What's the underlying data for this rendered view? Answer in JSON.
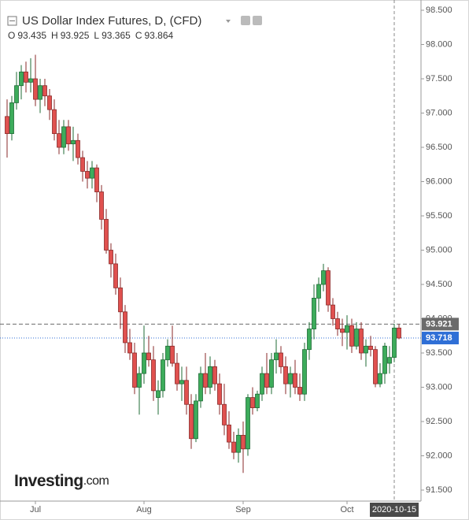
{
  "chart_data": {
    "type": "candlestick",
    "title": "US Dollar Index Futures, D, (CFD)",
    "ohlc_labels": [
      "O",
      "H",
      "L",
      "C"
    ],
    "up_color": "#3dac5b",
    "down_color": "#e0514f",
    "open": [
      96.95,
      96.7,
      97.15,
      97.4,
      97.6,
      97.45,
      97.5,
      97.2,
      97.4,
      97.25,
      97.05,
      96.7,
      96.5,
      96.8,
      96.55,
      96.6,
      96.35,
      96.15,
      96.05,
      96.2,
      95.85,
      95.45,
      95.0,
      94.8,
      94.45,
      94.1,
      93.65,
      93.5,
      93.0,
      93.2,
      93.5,
      93.4,
      92.85,
      92.95,
      93.4,
      93.6,
      93.35,
      93.05,
      93.1,
      92.75,
      92.25,
      92.8,
      93.2,
      93.0,
      93.3,
      93.05,
      92.75,
      92.45,
      92.2,
      92.05,
      92.3,
      92.1,
      92.85,
      92.7,
      92.9,
      93.2,
      93.0,
      93.4,
      93.5,
      93.3,
      93.05,
      93.2,
      93.0,
      92.9,
      93.55,
      93.85,
      94.3,
      94.5,
      94.7,
      94.2,
      94.0,
      93.85,
      93.8,
      93.9,
      93.6,
      93.85,
      93.5,
      93.6,
      93.55,
      93.05,
      93.2,
      93.35,
      93.435,
      93.864
    ],
    "high": [
      97.2,
      97.25,
      97.6,
      97.7,
      97.75,
      97.8,
      97.85,
      97.5,
      97.5,
      97.35,
      97.2,
      96.9,
      96.9,
      96.9,
      96.8,
      96.7,
      96.45,
      96.3,
      96.3,
      96.25,
      95.95,
      95.6,
      95.1,
      94.95,
      94.6,
      94.2,
      93.85,
      93.65,
      93.3,
      93.9,
      93.75,
      93.6,
      93.1,
      93.5,
      93.7,
      93.9,
      93.5,
      93.3,
      93.3,
      92.9,
      92.9,
      93.3,
      93.5,
      93.45,
      93.4,
      93.2,
      93.05,
      92.65,
      92.35,
      92.4,
      92.5,
      92.9,
      93.0,
      92.95,
      93.3,
      93.5,
      93.5,
      93.7,
      93.6,
      93.45,
      93.3,
      93.4,
      93.2,
      93.65,
      93.95,
      94.5,
      94.6,
      94.8,
      94.75,
      94.3,
      94.1,
      94.0,
      94.05,
      94.0,
      93.95,
      93.95,
      93.7,
      93.75,
      93.6,
      93.35,
      93.65,
      93.6,
      93.925,
      93.921
    ],
    "low": [
      96.35,
      96.6,
      97.05,
      97.2,
      97.3,
      97.3,
      97.1,
      97.0,
      97.1,
      96.9,
      96.6,
      96.4,
      96.4,
      96.45,
      96.3,
      96.25,
      96.0,
      95.9,
      95.9,
      95.7,
      95.3,
      94.95,
      94.6,
      94.35,
      93.85,
      93.5,
      93.4,
      92.9,
      92.6,
      93.05,
      93.3,
      92.8,
      92.6,
      92.85,
      93.3,
      93.3,
      92.95,
      92.8,
      92.6,
      92.1,
      92.2,
      92.7,
      92.9,
      92.9,
      92.95,
      92.6,
      92.3,
      92.1,
      91.95,
      91.9,
      91.75,
      92.0,
      92.6,
      92.65,
      92.8,
      92.9,
      92.9,
      93.2,
      93.2,
      92.9,
      92.85,
      92.9,
      92.8,
      92.8,
      93.4,
      93.7,
      94.1,
      94.4,
      94.1,
      93.9,
      93.75,
      93.6,
      93.55,
      93.5,
      93.55,
      93.4,
      93.3,
      93.45,
      93.0,
      93.0,
      93.05,
      93.2,
      93.365,
      93.7
    ],
    "close": [
      96.7,
      97.15,
      97.4,
      97.6,
      97.45,
      97.5,
      97.2,
      97.4,
      97.25,
      97.05,
      96.7,
      96.5,
      96.8,
      96.55,
      96.6,
      96.35,
      96.15,
      96.05,
      96.2,
      95.85,
      95.45,
      95.0,
      94.8,
      94.45,
      94.1,
      93.65,
      93.5,
      93.0,
      93.2,
      93.5,
      93.4,
      92.95,
      92.95,
      93.4,
      93.6,
      93.35,
      93.05,
      93.1,
      92.75,
      92.25,
      92.8,
      93.2,
      93.0,
      93.3,
      93.05,
      92.75,
      92.45,
      92.2,
      92.05,
      92.3,
      92.1,
      92.85,
      92.7,
      92.9,
      93.2,
      93.0,
      93.4,
      93.5,
      93.3,
      93.05,
      93.2,
      93.0,
      92.9,
      93.55,
      93.85,
      94.3,
      94.5,
      94.7,
      94.2,
      94.0,
      93.85,
      93.8,
      93.9,
      93.6,
      93.85,
      93.5,
      93.6,
      93.55,
      93.05,
      93.2,
      93.6,
      93.435,
      93.864,
      93.718
    ],
    "ylim": [
      91.5,
      98.5
    ],
    "yticks": [
      {
        "value": 91.5,
        "label": "91.500"
      },
      {
        "value": 92,
        "label": "92.000"
      },
      {
        "value": 92.5,
        "label": "92.500"
      },
      {
        "value": 93,
        "label": "93.000"
      },
      {
        "value": 93.5,
        "label": "93.500"
      },
      {
        "value": 94,
        "label": "94.000"
      },
      {
        "value": 94.5,
        "label": "94.500"
      },
      {
        "value": 95,
        "label": "95.000"
      },
      {
        "value": 95.5,
        "label": "95.500"
      },
      {
        "value": 96,
        "label": "96.000"
      },
      {
        "value": 96.5,
        "label": "96.500"
      },
      {
        "value": 97,
        "label": "97.000"
      },
      {
        "value": 97.5,
        "label": "97.500"
      },
      {
        "value": 98,
        "label": "98.000"
      },
      {
        "value": 98.5,
        "label": "98.500"
      }
    ],
    "xticks": [
      {
        "value": 6,
        "label": "Jul"
      },
      {
        "value": 29,
        "label": "Aug"
      },
      {
        "value": 50,
        "label": "Sep"
      },
      {
        "value": 72,
        "label": "Oct"
      }
    ],
    "crosshair": {
      "value": 82,
      "label": "2020-10-15"
    },
    "price_lines": [
      {
        "value": 93.921,
        "color": "#6b6b6b"
      },
      {
        "value": 93.718,
        "color": "#2f6fd6"
      }
    ],
    "grid": false,
    "logo": "Investing",
    "logo_suffix": ".com"
  }
}
